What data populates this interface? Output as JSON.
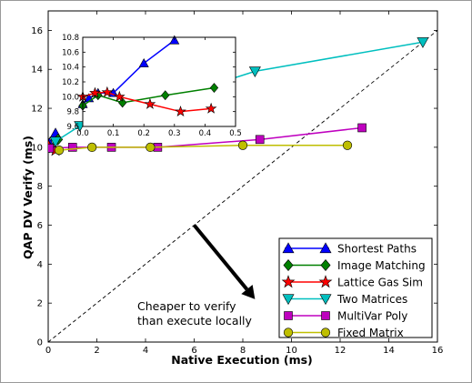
{
  "chart_data": [
    {
      "type": "line",
      "title": "",
      "xlabel": "Native Execution (ms)",
      "ylabel": "QAP DV Verify (ms)",
      "xlim": [
        0,
        16
      ],
      "ylim": [
        0,
        17
      ],
      "xticks": [
        "0",
        "2",
        "4",
        "6",
        "8",
        "10",
        "12",
        "14",
        "16"
      ],
      "yticks": [
        "0",
        "2",
        "4",
        "6",
        "8",
        "10",
        "12",
        "14",
        "16"
      ],
      "grid": false,
      "legend_position": "lower-right",
      "diagonal": {
        "x": [
          0,
          16
        ],
        "y": [
          0,
          16
        ],
        "style": "dashed",
        "color": "#000000"
      },
      "annotation": {
        "lines": [
          "Cheaper to verify",
          "than execute locally"
        ],
        "arrow_from": [
          6,
          6.0
        ],
        "arrow_to": [
          8.5,
          2.2
        ]
      },
      "series": [
        {
          "name": "Shortest Paths",
          "color": "#0000ff",
          "marker": "triangle-up",
          "x": [
            0.05,
            0.3
          ],
          "y": [
            10.2,
            10.7
          ]
        },
        {
          "name": "Image Matching",
          "color": "#008000",
          "marker": "diamond",
          "x": [
            0.05,
            0.4
          ],
          "y": [
            10.0,
            10.4
          ]
        },
        {
          "name": "Lattice Gas Sim",
          "color": "#ff0000",
          "marker": "star",
          "x": [
            0.02,
            0.3
          ],
          "y": [
            10.05,
            9.85
          ]
        },
        {
          "name": "Two Matrices",
          "color": "#00bfbf",
          "marker": "triangle-down",
          "x": [
            0.3,
            1.3,
            4.0,
            8.5,
            15.4
          ],
          "y": [
            10.3,
            11.1,
            12.1,
            13.9,
            15.4
          ]
        },
        {
          "name": "MultiVar Poly",
          "color": "#bf00bf",
          "marker": "square",
          "x": [
            0.05,
            1.0,
            2.6,
            4.5,
            8.7,
            12.9
          ],
          "y": [
            9.95,
            10.0,
            10.0,
            10.0,
            10.4,
            11.0
          ]
        },
        {
          "name": "Fixed Matrix",
          "color": "#bfbf00",
          "marker": "circle",
          "x": [
            0.45,
            1.8,
            4.2,
            8.0,
            12.3
          ],
          "y": [
            9.85,
            10.0,
            10.0,
            10.1,
            10.1
          ]
        }
      ]
    },
    {
      "type": "line",
      "title": "",
      "xlabel": "",
      "ylabel": "",
      "xlim": [
        0,
        0.5
      ],
      "ylim": [
        9.6,
        10.8
      ],
      "xticks": [
        "0.0",
        "0.1",
        "0.2",
        "0.3",
        "0.4",
        "0.5"
      ],
      "yticks": [
        "9.6",
        "9.8",
        "10.0",
        "10.2",
        "10.4",
        "10.6",
        "10.8"
      ],
      "grid": false,
      "series": [
        {
          "name": "Shortest Paths",
          "color": "#0000ff",
          "marker": "triangle-up",
          "x": [
            0.0,
            0.02,
            0.05,
            0.1,
            0.2,
            0.3
          ],
          "y": [
            9.9,
            9.98,
            10.05,
            10.05,
            10.45,
            10.76
          ]
        },
        {
          "name": "Image Matching",
          "color": "#008000",
          "marker": "diamond",
          "x": [
            0.0,
            0.05,
            0.13,
            0.27,
            0.43
          ],
          "y": [
            9.88,
            10.02,
            9.92,
            10.02,
            10.12
          ]
        },
        {
          "name": "Lattice Gas Sim",
          "color": "#ff0000",
          "marker": "star",
          "x": [
            0.0,
            0.04,
            0.08,
            0.12,
            0.22,
            0.32,
            0.42
          ],
          "y": [
            10.0,
            10.05,
            10.06,
            10.0,
            9.9,
            9.8,
            9.84
          ]
        }
      ]
    }
  ]
}
